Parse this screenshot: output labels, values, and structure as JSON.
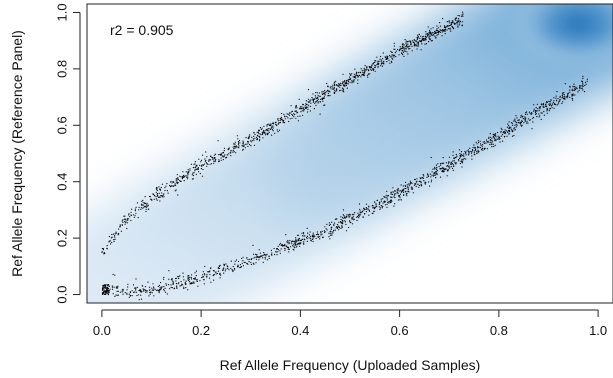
{
  "chart_data": {
    "type": "scatter",
    "title": "",
    "xlabel": "Ref Allele Frequency (Uploaded Samples)",
    "ylabel": "Ref Allele Frequency (Reference Panel)",
    "xlim": [
      -0.03,
      1.03
    ],
    "ylim": [
      -0.03,
      1.03
    ],
    "x_ticks": [
      0.0,
      0.2,
      0.4,
      0.6,
      0.8,
      1.0
    ],
    "x_tick_labels": [
      "0.0",
      "0.2",
      "0.4",
      "0.6",
      "0.8",
      "1.0"
    ],
    "y_ticks": [
      0.0,
      0.2,
      0.4,
      0.6,
      0.8,
      1.0
    ],
    "y_tick_labels": [
      "0.0",
      "0.2",
      "0.4",
      "0.6",
      "0.8",
      "1.0"
    ],
    "annotation": "r2 = 0.905",
    "grid": false,
    "legend": "none",
    "density_color": "#1f6db5",
    "point_color": "#000000",
    "series": [
      {
        "points": [
          [
            0.0,
            0.15
          ],
          [
            0.02,
            0.2
          ],
          [
            0.05,
            0.27
          ],
          [
            0.1,
            0.34
          ],
          [
            0.15,
            0.4
          ],
          [
            0.2,
            0.46
          ],
          [
            0.25,
            0.5
          ],
          [
            0.3,
            0.55
          ],
          [
            0.35,
            0.6
          ],
          [
            0.4,
            0.66
          ],
          [
            0.45,
            0.71
          ],
          [
            0.5,
            0.76
          ],
          [
            0.55,
            0.81
          ],
          [
            0.6,
            0.86
          ],
          [
            0.65,
            0.91
          ],
          [
            0.7,
            0.95
          ],
          [
            0.73,
            0.98
          ]
        ]
      },
      {
        "points": [
          [
            0.0,
            0.02
          ],
          [
            0.05,
            0.01
          ],
          [
            0.1,
            0.02
          ],
          [
            0.15,
            0.04
          ],
          [
            0.2,
            0.06
          ],
          [
            0.25,
            0.09
          ],
          [
            0.3,
            0.12
          ],
          [
            0.35,
            0.16
          ],
          [
            0.4,
            0.19
          ],
          [
            0.45,
            0.22
          ],
          [
            0.5,
            0.27
          ],
          [
            0.55,
            0.31
          ],
          [
            0.6,
            0.36
          ],
          [
            0.65,
            0.41
          ],
          [
            0.7,
            0.46
          ],
          [
            0.75,
            0.51
          ],
          [
            0.8,
            0.56
          ],
          [
            0.85,
            0.62
          ],
          [
            0.9,
            0.67
          ],
          [
            0.95,
            0.72
          ],
          [
            0.98,
            0.76
          ]
        ]
      }
    ]
  }
}
